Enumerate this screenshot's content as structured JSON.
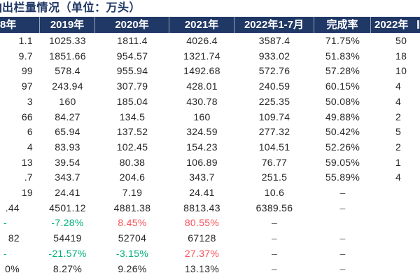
{
  "title": {
    "text": "出栏量情况（单位：万头）"
  },
  "table": {
    "header": [
      "8年",
      "2019年",
      "2020年",
      "2021年",
      "2022年1-7月",
      "完成率",
      "2022年"
    ],
    "rows": [
      [
        "1.1",
        "1025.33",
        "1811.4",
        "4026.4",
        "3587.4",
        "71.75%",
        "50"
      ],
      [
        "9.7",
        "1851.66",
        "954.57",
        "1321.74",
        "933.02",
        "51.83%",
        "18"
      ],
      [
        "99",
        "578.4",
        "955.94",
        "1492.68",
        "572.76",
        "57.28%",
        "10"
      ],
      [
        "97",
        "243.94",
        "307.79",
        "428.01",
        "240.59",
        "60.15%",
        "4"
      ],
      [
        "3",
        "160",
        "185.04",
        "430.78",
        "225.35",
        "50.08%",
        "4"
      ],
      [
        "66",
        "84.27",
        "134.5",
        "160",
        "109.74",
        "49.88%",
        "2"
      ],
      [
        "6",
        "65.94",
        "137.52",
        "324.59",
        "277.32",
        "50.42%",
        "5"
      ],
      [
        "4",
        "83.93",
        "102.45",
        "154.23",
        "104.51",
        "52.26%",
        "2"
      ],
      [
        "13",
        "39.54",
        "80.38",
        "106.89",
        "76.77",
        "59.05%",
        "1"
      ],
      [
        ".7",
        "343.7",
        "204.6",
        "343.7",
        "251.5",
        "55.89%",
        "4"
      ],
      [
        "19",
        "24.41",
        "7.19",
        "24.41",
        "10.6",
        "–",
        ""
      ],
      [
        ".44",
        "4501.12",
        "4881.38",
        "8813.43",
        "6389.56",
        "–",
        ""
      ],
      [
        "-",
        "-7.28%",
        "8.45%",
        "80.55%",
        "–",
        "",
        ""
      ],
      [
        "82",
        "54419",
        "52704",
        "67128",
        "–",
        "–",
        ""
      ],
      [
        "-",
        "-21.57%",
        "-3.15%",
        "27.37%",
        "–",
        "–",
        ""
      ],
      [
        "0%",
        "8.27%",
        "9.26%",
        "13.13%",
        "–",
        "–",
        ""
      ]
    ],
    "cell_styles": {
      "12": {
        "0": "green",
        "1": "green",
        "2": "red",
        "3": "red"
      },
      "14": {
        "0": "green",
        "1": "green",
        "2": "green",
        "3": "red"
      }
    },
    "colors": {
      "header_bg": "#1f3866",
      "title": "#1f3866",
      "text": "#262626",
      "green": "#00b27a",
      "red": "#f7515a",
      "dash": "#595959"
    }
  }
}
